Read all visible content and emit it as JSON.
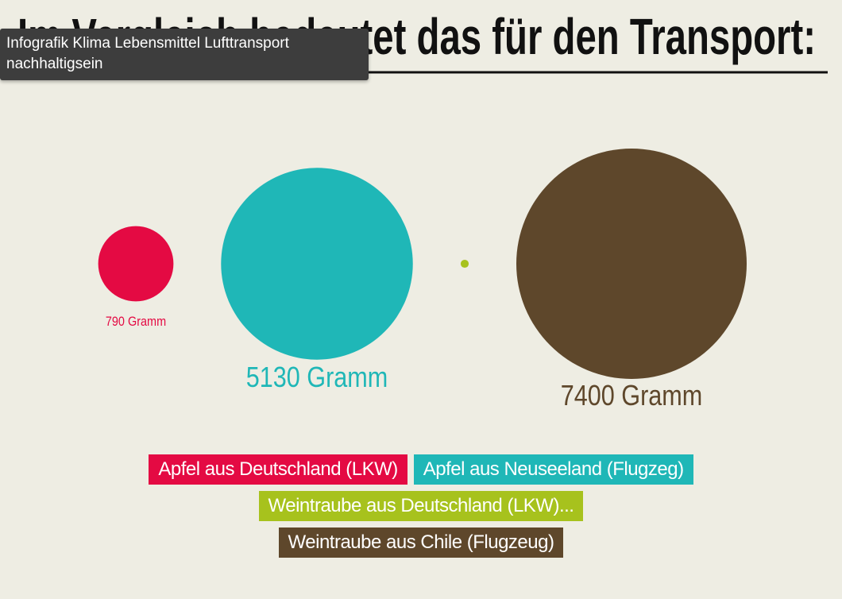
{
  "tooltip": "Infografik Klima Lebensmittel Lufttransport nachhaltigsein",
  "chart_data": {
    "type": "bubble",
    "title": "Im Vergleich bedeutet das für den Transport:",
    "categories": [
      "Apfel aus Deutschland (LKW)",
      "Apfel aus Neuseeland (Flugzeg)",
      "Weintraube aus Deutschland (LKW)...",
      "Weintraube aus Chile (Flugzeug)"
    ],
    "values": [
      790,
      5130,
      9,
      7400
    ],
    "value_labels": [
      "790 Gramm",
      "5130 Gramm",
      null,
      "7400 Gramm"
    ],
    "colors": [
      "#e40a43",
      "#1fb7b7",
      "#a7c21d",
      "#5e472b"
    ]
  }
}
